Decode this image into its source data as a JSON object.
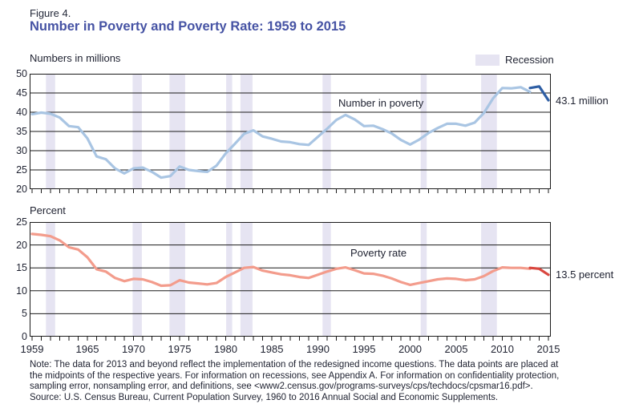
{
  "figure": {
    "label": "Figure 4.",
    "title": "Number in Poverty and Poverty Rate: 1959 to 2015"
  },
  "legend": {
    "recession_label": "Recession"
  },
  "axis_units": {
    "top": "Numbers in millions",
    "bottom": "Percent"
  },
  "series_labels": {
    "top": "Number in poverty",
    "bottom": "Poverty rate"
  },
  "annotations": {
    "number_end": "43.1 million",
    "rate_end": "13.5 percent"
  },
  "x_axis": {
    "labels": [
      "1959",
      "1965",
      "1970",
      "1975",
      "1980",
      "1985",
      "1990",
      "1995",
      "2000",
      "2005",
      "2010",
      "2015"
    ],
    "year_start": 1959,
    "year_end": 2015
  },
  "note": {
    "line1": "Note: The data for 2013 and beyond reflect the implementation of the redesigned income questions. The data points are placed at",
    "line2": "the midpoints of the respective years. For information on recessions, see Appendix A. For information on confidentiality protection,",
    "line3": "sampling error, nonsampling error, and definitions, see <www2.census.gov/programs-surveys/cps/techdocs/cpsmar16.pdf>.",
    "source": "Source: U.S. Census Bureau, Current Population Survey, 1960 to 2016 Annual Social and Economic Supplements."
  },
  "colors": {
    "light_blue": "#a9c5e3",
    "dark_blue": "#2e5ea4",
    "salmon": "#f39c8c",
    "dark_red": "#d9473f",
    "recession_band": "#e6e4f2",
    "grid": "#1a1a1a",
    "title_blue": "#4653a4",
    "text": "#1e2130"
  },
  "chart_data": [
    {
      "id": "number-in-poverty",
      "type": "line",
      "title": "Number in poverty",
      "ylabel": "Numbers in millions",
      "ylim": [
        20,
        50
      ],
      "y_ticks": [
        50,
        45,
        40,
        35,
        30,
        25,
        20
      ],
      "grid": "horizontal",
      "end_label": "43.1 million",
      "recession_bands": [
        [
          1960.5,
          1961.5
        ],
        [
          1969.9,
          1970.9
        ],
        [
          1973.9,
          1975.6
        ],
        [
          1980.05,
          1980.7
        ],
        [
          1981.6,
          1982.9
        ],
        [
          1990.5,
          1991.4
        ],
        [
          2001.15,
          2001.8
        ],
        [
          2007.7,
          2009.4
        ]
      ],
      "series": [
        {
          "name": "Number in poverty (millions), 1959-2013",
          "color": "#a9c5e3",
          "x": [
            1959,
            1960,
            1961,
            1962,
            1963,
            1964,
            1965,
            1966,
            1967,
            1968,
            1969,
            1970,
            1971,
            1972,
            1973,
            1974,
            1975,
            1976,
            1977,
            1978,
            1979,
            1980,
            1981,
            1982,
            1983,
            1984,
            1985,
            1986,
            1987,
            1988,
            1989,
            1990,
            1991,
            1992,
            1993,
            1994,
            1995,
            1996,
            1997,
            1998,
            1999,
            2000,
            2001,
            2002,
            2003,
            2004,
            2005,
            2006,
            2007,
            2008,
            2009,
            2010,
            2011,
            2012,
            2013
          ],
          "values": [
            39.5,
            39.9,
            39.6,
            38.6,
            36.4,
            36.1,
            33.2,
            28.5,
            27.8,
            25.4,
            24.1,
            25.4,
            25.6,
            24.5,
            23.0,
            23.4,
            25.9,
            25.0,
            24.7,
            24.5,
            26.1,
            29.3,
            31.8,
            34.4,
            35.3,
            33.7,
            33.1,
            32.4,
            32.2,
            31.7,
            31.5,
            33.6,
            35.7,
            38.0,
            39.3,
            38.1,
            36.4,
            36.5,
            35.6,
            34.5,
            32.8,
            31.6,
            32.9,
            34.6,
            35.9,
            37.0,
            37.0,
            36.5,
            37.3,
            39.8,
            43.6,
            46.3,
            46.2,
            46.5,
            45.3
          ]
        },
        {
          "name": "Number in poverty, redesigned income questions, 2013-2015",
          "color": "#2e5ea4",
          "x": [
            2013,
            2014,
            2015
          ],
          "values": [
            46.3,
            46.7,
            43.1
          ]
        }
      ]
    },
    {
      "id": "poverty-rate",
      "type": "line",
      "title": "Poverty rate",
      "ylabel": "Percent",
      "ylim": [
        0,
        25
      ],
      "y_ticks": [
        25,
        20,
        15,
        10,
        5,
        0
      ],
      "grid": "horizontal",
      "end_label": "13.5 percent",
      "recession_bands": [
        [
          1960.5,
          1961.5
        ],
        [
          1969.9,
          1970.9
        ],
        [
          1973.9,
          1975.6
        ],
        [
          1980.05,
          1980.7
        ],
        [
          1981.6,
          1982.9
        ],
        [
          1990.5,
          1991.4
        ],
        [
          2001.15,
          2001.8
        ],
        [
          2007.7,
          2009.4
        ]
      ],
      "series": [
        {
          "name": "Poverty rate (percent), 1959-2013",
          "color": "#f39c8c",
          "x": [
            1959,
            1960,
            1961,
            1962,
            1963,
            1964,
            1965,
            1966,
            1967,
            1968,
            1969,
            1970,
            1971,
            1972,
            1973,
            1974,
            1975,
            1976,
            1977,
            1978,
            1979,
            1980,
            1981,
            1982,
            1983,
            1984,
            1985,
            1986,
            1987,
            1988,
            1989,
            1990,
            1991,
            1992,
            1993,
            1994,
            1995,
            1996,
            1997,
            1998,
            1999,
            2000,
            2001,
            2002,
            2003,
            2004,
            2005,
            2006,
            2007,
            2008,
            2009,
            2010,
            2011,
            2012,
            2013
          ],
          "values": [
            22.4,
            22.2,
            21.9,
            21.0,
            19.5,
            19.0,
            17.3,
            14.7,
            14.2,
            12.8,
            12.1,
            12.6,
            12.5,
            11.9,
            11.1,
            11.2,
            12.3,
            11.8,
            11.6,
            11.4,
            11.7,
            13.0,
            14.0,
            15.0,
            15.2,
            14.4,
            14.0,
            13.6,
            13.4,
            13.0,
            12.8,
            13.5,
            14.2,
            14.8,
            15.1,
            14.5,
            13.8,
            13.7,
            13.3,
            12.7,
            11.9,
            11.3,
            11.7,
            12.1,
            12.5,
            12.7,
            12.6,
            12.3,
            12.5,
            13.2,
            14.3,
            15.1,
            15.0,
            15.0,
            14.8
          ]
        },
        {
          "name": "Poverty rate, redesigned income questions, 2013-2015",
          "color": "#d9473f",
          "x": [
            2013,
            2014,
            2015
          ],
          "values": [
            15.0,
            14.8,
            13.5
          ]
        }
      ]
    }
  ]
}
